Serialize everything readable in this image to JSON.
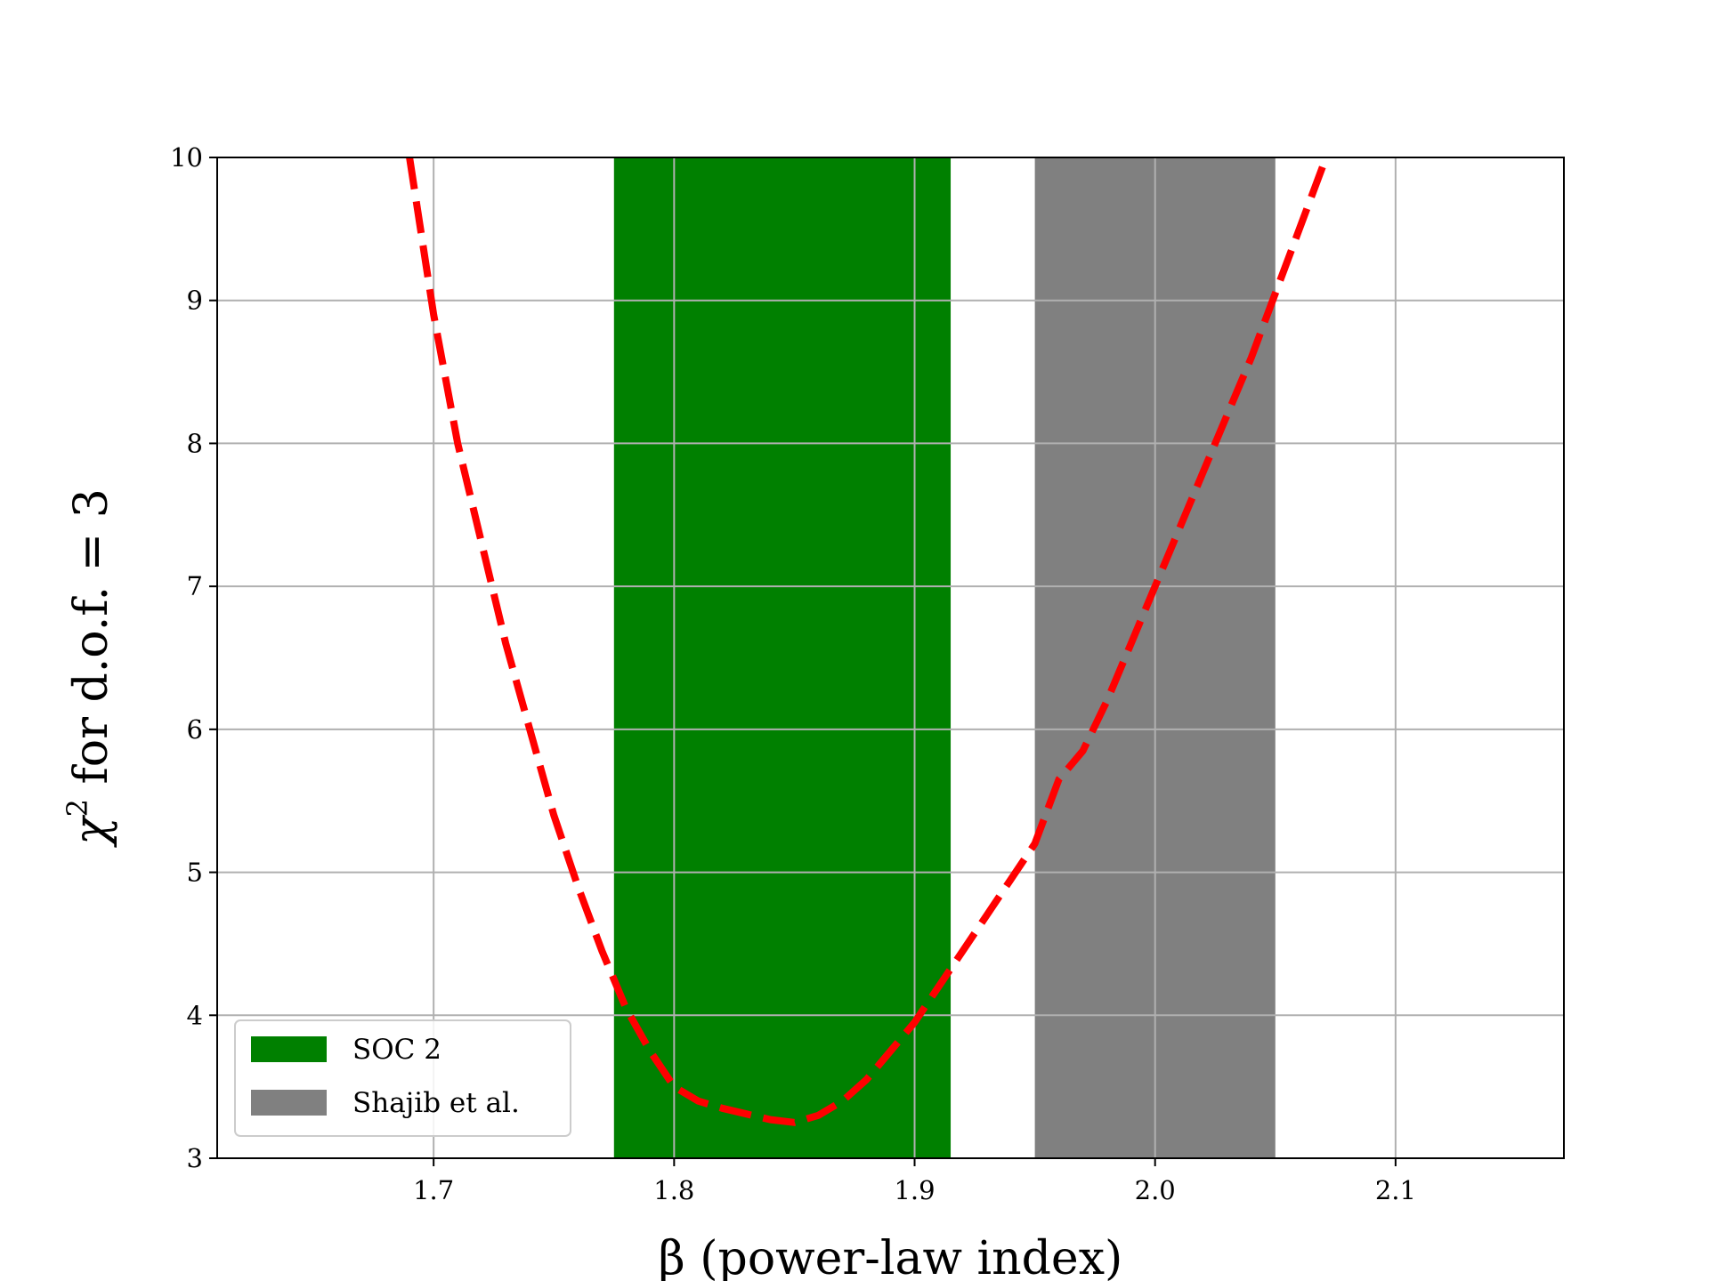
{
  "chart_data": {
    "type": "line",
    "xlabel": "β (power-law index)",
    "ylabel_prefix": "χ",
    "ylabel_sup": "2",
    "ylabel_rest": " for d.o.f. = 3",
    "xlim": [
      1.61,
      2.17
    ],
    "ylim": [
      3,
      10
    ],
    "xticks": [
      1.7,
      1.8,
      1.9,
      2.0,
      2.1
    ],
    "xtick_labels": [
      "1.7",
      "1.8",
      "1.9",
      "2.0",
      "2.1"
    ],
    "yticks": [
      3,
      4,
      5,
      6,
      7,
      8,
      9,
      10
    ],
    "ytick_labels": [
      "3",
      "4",
      "5",
      "6",
      "7",
      "8",
      "9",
      "10"
    ],
    "grid": true,
    "legend_position": "lower-left",
    "bands": [
      {
        "name": "SOC 2",
        "x0": 1.775,
        "x1": 1.915,
        "color": "#008000"
      },
      {
        "name": "Shajib et al.",
        "x0": 1.95,
        "x1": 2.05,
        "color": "#808080"
      }
    ],
    "series": [
      {
        "color": "#ff0000",
        "style": "dashed",
        "x": [
          1.69,
          1.7,
          1.71,
          1.72,
          1.73,
          1.74,
          1.75,
          1.76,
          1.77,
          1.78,
          1.79,
          1.8,
          1.81,
          1.82,
          1.83,
          1.84,
          1.85,
          1.86,
          1.87,
          1.88,
          1.89,
          1.9,
          1.91,
          1.92,
          1.93,
          1.94,
          1.95,
          1.96,
          1.97,
          1.98,
          1.99,
          2.0,
          2.01,
          2.02,
          2.03,
          2.04,
          2.05,
          2.06,
          2.07
        ],
        "y": [
          10.0,
          8.9,
          8.0,
          7.3,
          6.6,
          6.0,
          5.4,
          4.9,
          4.45,
          4.05,
          3.75,
          3.5,
          3.4,
          3.35,
          3.31,
          3.27,
          3.25,
          3.3,
          3.4,
          3.55,
          3.75,
          3.95,
          4.2,
          4.45,
          4.7,
          4.95,
          5.2,
          5.65,
          5.85,
          6.2,
          6.6,
          7.0,
          7.4,
          7.8,
          8.2,
          8.6,
          9.05,
          9.5,
          9.95
        ]
      }
    ]
  }
}
